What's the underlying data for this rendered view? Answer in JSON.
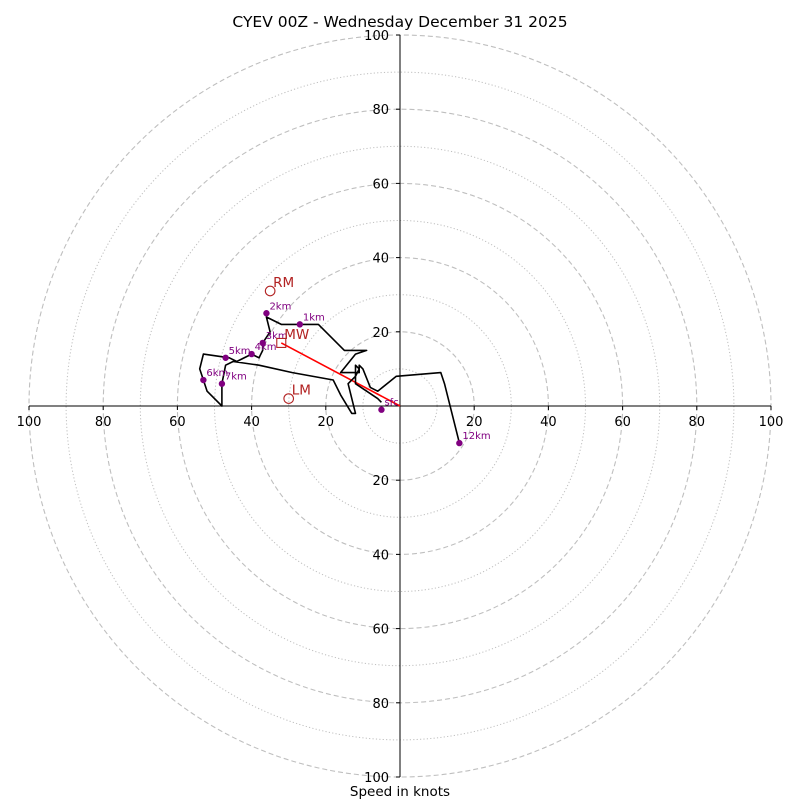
{
  "chart_data": {
    "type": "hodograph",
    "title": "CYEV 00Z - Wednesday December 31 2025",
    "xlabel": "Speed in knots",
    "ylabel": "",
    "range": [
      -100,
      100
    ],
    "rings_major": [
      20,
      40,
      60,
      80,
      100
    ],
    "rings_minor": [
      10,
      30,
      50,
      70,
      90
    ],
    "x_tick_labels": [
      "100",
      "80",
      "60",
      "40",
      "20",
      "20",
      "40",
      "60",
      "80",
      "100"
    ],
    "x_tick_values": [
      -100,
      -80,
      -60,
      -40,
      -20,
      20,
      40,
      60,
      80,
      100
    ],
    "y_tick_labels": [
      "100",
      "80",
      "60",
      "40",
      "20",
      "20",
      "40",
      "60",
      "80",
      "100"
    ],
    "y_tick_values": [
      100,
      80,
      60,
      40,
      20,
      -20,
      -40,
      -60,
      -80,
      -100
    ],
    "trace": [
      [
        16,
        -10
      ],
      [
        12,
        6
      ],
      [
        11,
        9
      ],
      [
        -1,
        8
      ],
      [
        -6,
        4
      ],
      [
        -8,
        5
      ],
      [
        -10,
        10
      ],
      [
        -11,
        11
      ],
      [
        -11,
        9
      ],
      [
        -16,
        9
      ],
      [
        -12,
        14
      ],
      [
        -9,
        15
      ],
      [
        -15,
        15
      ],
      [
        -22,
        22
      ],
      [
        -32,
        22
      ],
      [
        -36,
        24
      ],
      [
        -35,
        20
      ],
      [
        -37,
        17
      ],
      [
        -37,
        15
      ],
      [
        -38,
        13
      ],
      [
        -40,
        14
      ],
      [
        -44,
        12
      ],
      [
        -46,
        13
      ],
      [
        -53,
        14
      ],
      [
        -54,
        10
      ],
      [
        -53,
        7
      ],
      [
        -52,
        4
      ],
      [
        -48,
        0
      ],
      [
        -48,
        6
      ],
      [
        -47,
        11
      ],
      [
        -45,
        12
      ],
      [
        -38,
        11
      ],
      [
        -29,
        9
      ],
      [
        -18,
        7
      ],
      [
        -16,
        3
      ],
      [
        -13,
        -2
      ],
      [
        -12,
        -2
      ],
      [
        -14,
        6
      ],
      [
        -12,
        8
      ],
      [
        -11,
        10
      ],
      [
        -12,
        11
      ],
      [
        -12,
        6
      ],
      [
        -6,
        2
      ],
      [
        -5,
        1
      ]
    ],
    "height_markers": [
      {
        "label": "sfc",
        "u": -5,
        "v": -1
      },
      {
        "label": "1km",
        "u": -27,
        "v": 22
      },
      {
        "label": "2km",
        "u": -36,
        "v": 25
      },
      {
        "label": "3km",
        "u": -37,
        "v": 17
      },
      {
        "label": "4km",
        "u": -40,
        "v": 14
      },
      {
        "label": "5km",
        "u": -47,
        "v": 13
      },
      {
        "label": "6km",
        "u": -53,
        "v": 7
      },
      {
        "label": "7km",
        "u": -48,
        "v": 6
      },
      {
        "label": "12km",
        "u": 16,
        "v": -10
      }
    ],
    "motions": [
      {
        "label": "RM",
        "u": -35,
        "v": 31,
        "symbol": "circle"
      },
      {
        "label": "LM",
        "u": -30,
        "v": 2,
        "symbol": "circle"
      },
      {
        "label": "MW",
        "u": -32,
        "v": 17,
        "symbol": "square"
      }
    ],
    "shear_vector": {
      "from": [
        0,
        0
      ],
      "to": [
        -32,
        17
      ]
    },
    "colors": {
      "trace": "#000000",
      "markers": "#800080",
      "motions": "#b22222",
      "shear": "#ff0000",
      "grid": "#bfbfbf"
    }
  }
}
